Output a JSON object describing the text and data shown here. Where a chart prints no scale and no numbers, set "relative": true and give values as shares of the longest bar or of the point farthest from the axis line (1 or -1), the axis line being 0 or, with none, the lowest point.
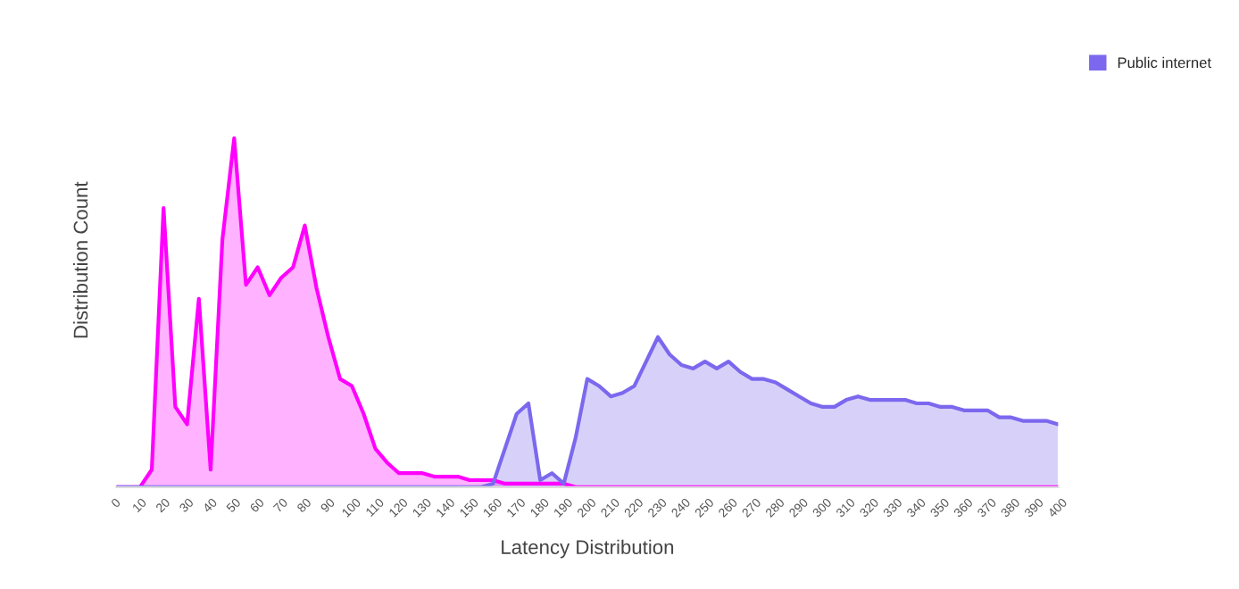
{
  "chart_data": {
    "type": "area",
    "relative": true,
    "xlabel": "Latency Distribution",
    "ylabel": "Distribution Count",
    "x": [
      0,
      5,
      10,
      15,
      20,
      25,
      30,
      35,
      40,
      45,
      50,
      55,
      60,
      65,
      70,
      75,
      80,
      85,
      90,
      95,
      100,
      105,
      110,
      115,
      120,
      125,
      130,
      135,
      140,
      145,
      150,
      155,
      160,
      165,
      170,
      175,
      180,
      185,
      190,
      195,
      200,
      205,
      210,
      215,
      220,
      225,
      230,
      235,
      240,
      245,
      250,
      255,
      260,
      265,
      270,
      275,
      280,
      285,
      290,
      295,
      300,
      305,
      310,
      315,
      320,
      325,
      330,
      335,
      340,
      345,
      350,
      355,
      360,
      365,
      370,
      375,
      380,
      385,
      390,
      395,
      400
    ],
    "xlim": [
      0,
      400
    ],
    "xticks": [
      0,
      10,
      20,
      30,
      40,
      50,
      60,
      70,
      80,
      90,
      100,
      110,
      120,
      130,
      140,
      150,
      160,
      170,
      180,
      190,
      200,
      210,
      220,
      230,
      240,
      250,
      260,
      270,
      280,
      290,
      300,
      310,
      320,
      330,
      340,
      350,
      360,
      370,
      380,
      390,
      400
    ],
    "series": [
      {
        "color": "#ff00ff",
        "values": [
          0,
          0,
          0,
          0.05,
          0.8,
          0.23,
          0.18,
          0.54,
          0.05,
          0.71,
          1,
          0.58,
          0.63,
          0.55,
          0.6,
          0.63,
          0.75,
          0.57,
          0.43,
          0.31,
          0.29,
          0.21,
          0.11,
          0.07,
          0.04,
          0.04,
          0.04,
          0.03,
          0.03,
          0.03,
          0.02,
          0.02,
          0.02,
          0.01,
          0.01,
          0.01,
          0.01,
          0.01,
          0.01,
          0,
          0,
          0,
          0,
          0,
          0,
          0,
          0,
          0,
          0,
          0,
          0,
          0,
          0,
          0,
          0,
          0,
          0,
          0,
          0,
          0,
          0,
          0,
          0,
          0,
          0,
          0,
          0,
          0,
          0,
          0,
          0,
          0,
          0,
          0,
          0,
          0,
          0,
          0,
          0,
          0,
          0
        ]
      },
      {
        "name": "Public internet",
        "color": "#7b68ee",
        "values": [
          0,
          0,
          0,
          0,
          0,
          0,
          0,
          0,
          0,
          0,
          0,
          0,
          0,
          0,
          0,
          0,
          0,
          0,
          0,
          0,
          0,
          0,
          0,
          0,
          0,
          0,
          0,
          0,
          0,
          0,
          0,
          0,
          0.01,
          0.11,
          0.21,
          0.24,
          0.02,
          0.04,
          0.01,
          0.14,
          0.31,
          0.29,
          0.26,
          0.27,
          0.29,
          0.36,
          0.43,
          0.38,
          0.35,
          0.34,
          0.36,
          0.34,
          0.36,
          0.33,
          0.31,
          0.31,
          0.3,
          0.28,
          0.26,
          0.24,
          0.23,
          0.23,
          0.25,
          0.26,
          0.25,
          0.25,
          0.25,
          0.25,
          0.24,
          0.24,
          0.23,
          0.23,
          0.22,
          0.22,
          0.22,
          0.2,
          0.2,
          0.19,
          0.19,
          0.19,
          0.18
        ]
      }
    ],
    "legend": "top right"
  }
}
